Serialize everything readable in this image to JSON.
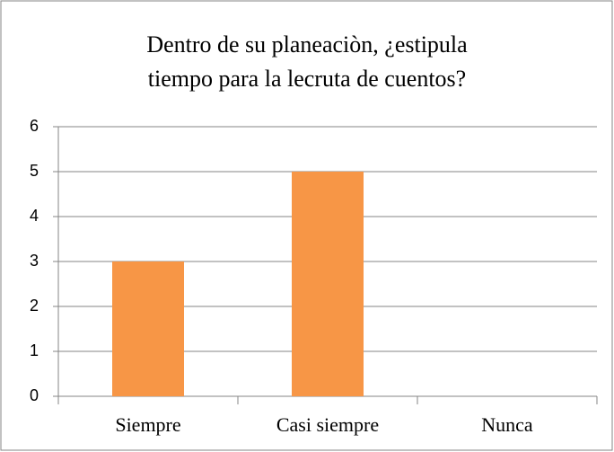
{
  "chart_data": {
    "type": "bar",
    "title": [
      "Dentro de su planeaciòn, ¿estipula",
      "tiempo para la lecruta de cuentos?"
    ],
    "categories": [
      "Siempre",
      "Casi siempre",
      "Nunca"
    ],
    "values": [
      3,
      5,
      0
    ],
    "color": "#f79646",
    "ylim": [
      0,
      6
    ],
    "yticks": [
      0,
      1,
      2,
      3,
      4,
      5,
      6
    ],
    "grid": true
  }
}
